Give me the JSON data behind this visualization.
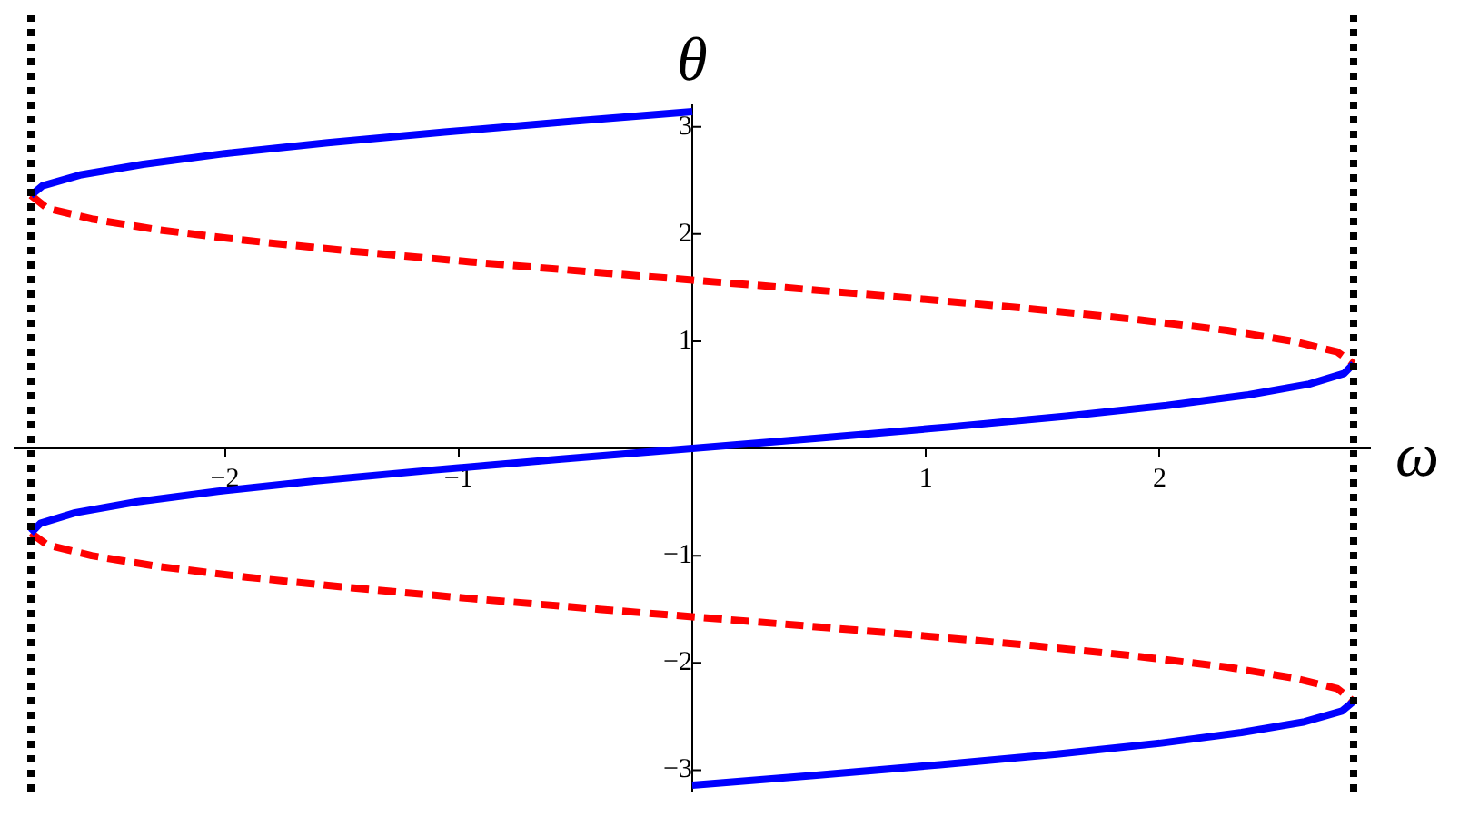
{
  "chart_data": {
    "type": "line",
    "xlabel": "ω",
    "ylabel": "θ",
    "xlim": [
      -2.9,
      2.9
    ],
    "ylim": [
      -3.2,
      3.2
    ],
    "xticks": [
      -2,
      -1,
      1,
      2
    ],
    "yticks": [
      -3,
      -2,
      -1,
      1,
      2,
      3
    ],
    "grid": false,
    "legend": false,
    "series": [
      {
        "color": "#0000ff",
        "line_style": "solid",
        "x": [
          -2.83,
          -2.78,
          -2.62,
          -2.35,
          -2.0,
          -1.56,
          -1.06,
          -0.52,
          0
        ],
        "values": [
          2.36,
          2.45,
          2.55,
          2.65,
          2.75,
          2.85,
          2.95,
          3.05,
          3.14
        ]
      },
      {
        "color": "#0000ff",
        "line_style": "solid",
        "x": [
          -2.83,
          -2.79,
          -2.64,
          -2.38,
          -2.03,
          -1.6,
          -1.1,
          -0.56,
          0,
          0.56,
          1.1,
          1.6,
          2.03,
          2.38,
          2.64,
          2.79,
          2.83
        ],
        "values": [
          -0.79,
          -0.7,
          -0.6,
          -0.5,
          -0.4,
          -0.3,
          -0.2,
          -0.1,
          0,
          0.1,
          0.2,
          0.3,
          0.4,
          0.5,
          0.6,
          0.7,
          0.79
        ]
      },
      {
        "color": "#0000ff",
        "line_style": "solid",
        "x": [
          0,
          0.52,
          1.06,
          1.56,
          2.0,
          2.35,
          2.62,
          2.78,
          2.83
        ],
        "values": [
          -3.14,
          -3.05,
          -2.95,
          -2.85,
          -2.75,
          -2.65,
          -2.55,
          -2.45,
          -2.36
        ]
      },
      {
        "color": "#ff0000",
        "line_style": "dashed",
        "x": [
          -2.83,
          -2.76,
          -2.57,
          -2.29,
          -1.91,
          -1.46,
          -0.95,
          -0.4,
          0,
          0.4,
          0.95,
          1.46,
          1.91,
          2.29,
          2.57,
          2.76,
          2.83
        ],
        "values": [
          2.36,
          2.24,
          2.14,
          2.04,
          1.94,
          1.84,
          1.74,
          1.64,
          1.57,
          1.5,
          1.4,
          1.3,
          1.2,
          1.1,
          1.0,
          0.9,
          0.79
        ]
      },
      {
        "color": "#ff0000",
        "line_style": "dashed",
        "x": [
          -2.83,
          -2.76,
          -2.57,
          -2.29,
          -1.91,
          -1.46,
          -0.95,
          -0.4,
          0,
          0.4,
          0.95,
          1.46,
          1.91,
          2.29,
          2.57,
          2.76,
          2.83
        ],
        "values": [
          -0.79,
          -0.9,
          -1.0,
          -1.1,
          -1.2,
          -1.3,
          -1.4,
          -1.5,
          -1.57,
          -1.64,
          -1.74,
          -1.84,
          -1.94,
          -2.04,
          -2.14,
          -2.24,
          -2.36
        ]
      }
    ],
    "ref_lines": [
      {
        "axis": "x",
        "value": -2.83,
        "color": "#000000",
        "line_style": "dotted"
      },
      {
        "axis": "x",
        "value": 2.83,
        "color": "#000000",
        "line_style": "dotted"
      }
    ]
  }
}
